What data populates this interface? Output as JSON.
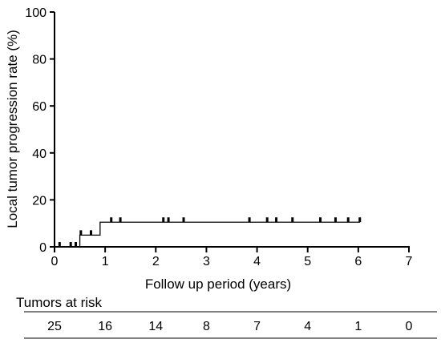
{
  "chart_data": {
    "type": "line",
    "step": true,
    "xlabel": "Follow up period (years)",
    "ylabel": "Local tumor progression rate (%)",
    "xlim": [
      0,
      7
    ],
    "ylim": [
      0,
      100
    ],
    "x_ticks": [
      0,
      1,
      2,
      3,
      4,
      5,
      6,
      7
    ],
    "y_ticks": [
      0,
      20,
      40,
      60,
      80,
      100
    ],
    "grid": false,
    "series": [
      {
        "steps": [
          {
            "x": 0,
            "y": 0
          },
          {
            "x": 0.5,
            "y": 5
          },
          {
            "x": 0.9,
            "y": 10.5
          },
          {
            "x": 6.03,
            "y": 10.5
          }
        ],
        "censored": [
          {
            "x": 0.1,
            "y": 0
          },
          {
            "x": 0.32,
            "y": 0
          },
          {
            "x": 0.42,
            "y": 0
          },
          {
            "x": 0.52,
            "y": 5
          },
          {
            "x": 0.72,
            "y": 5
          },
          {
            "x": 1.12,
            "y": 10.5
          },
          {
            "x": 1.3,
            "y": 10.5
          },
          {
            "x": 2.15,
            "y": 10.5
          },
          {
            "x": 2.25,
            "y": 10.5
          },
          {
            "x": 2.55,
            "y": 10.5
          },
          {
            "x": 3.85,
            "y": 10.5
          },
          {
            "x": 4.2,
            "y": 10.5
          },
          {
            "x": 4.38,
            "y": 10.5
          },
          {
            "x": 4.7,
            "y": 10.5
          },
          {
            "x": 5.25,
            "y": 10.5
          },
          {
            "x": 5.55,
            "y": 10.5
          },
          {
            "x": 5.8,
            "y": 10.5
          },
          {
            "x": 6.03,
            "y": 10.5
          }
        ]
      }
    ]
  },
  "risk_table": {
    "title": "Tumors at risk",
    "values": [
      "25",
      "16",
      "14",
      "8",
      "7",
      "4",
      "1",
      "0"
    ]
  }
}
